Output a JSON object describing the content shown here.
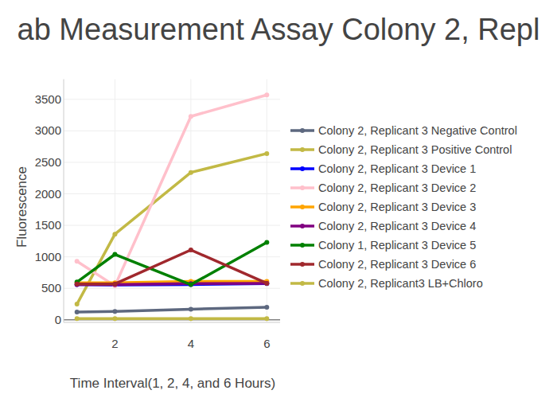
{
  "chart_data": {
    "type": "line",
    "title": "ab Measurement Assay Colony 2, Repl",
    "x_label": "Time Interval(1, 2, 4, and 6 Hours)",
    "y_label": "Fluorescence",
    "x": [
      1,
      2,
      4,
      6
    ],
    "series": [
      {
        "name": "Colony 2, Replicant 3 Negative Control",
        "color": "#5d687f",
        "values": [
          125,
          135,
          170,
          200
        ]
      },
      {
        "name": "Colony 2, Replicant 3 Positive Control",
        "color": "#c2b945",
        "values": [
          250,
          1360,
          2340,
          2640
        ]
      },
      {
        "name": "Colony 2, Replicant 3 Device 1",
        "color": "#0000ff",
        "values": [
          560,
          555,
          560,
          575
        ]
      },
      {
        "name": "Colony 2, Replicant 3 Device 2",
        "color": "#ffc0cb",
        "values": [
          930,
          540,
          3230,
          3570
        ]
      },
      {
        "name": "Colony 2, Replicant 3 Device 3",
        "color": "#ffa500",
        "values": [
          590,
          590,
          610,
          610
        ]
      },
      {
        "name": "Colony 2, Replicant 3 Device 4",
        "color": "#800080",
        "values": [
          560,
          560,
          575,
          580
        ]
      },
      {
        "name": "Colony 1, Replicant 3 Device 5",
        "color": "#008000",
        "values": [
          600,
          1040,
          560,
          1230
        ]
      },
      {
        "name": "Colony 2, Replicant 3 Device 6",
        "color": "#a0282d",
        "values": [
          570,
          570,
          1110,
          580
        ]
      },
      {
        "name": "Colony 2, Replicant3 LB+Chloro",
        "color": "#c2b945",
        "values": [
          20,
          20,
          20,
          20
        ]
      }
    ],
    "xlim": [
      0.65,
      6.35
    ],
    "ylim": [
      -40,
      3820
    ],
    "xticks": [
      2,
      4,
      6
    ],
    "yticks": [
      0,
      500,
      1000,
      1500,
      2000,
      2500,
      3000,
      3500
    ],
    "grid": true,
    "legend": "right",
    "marker": "circle"
  }
}
